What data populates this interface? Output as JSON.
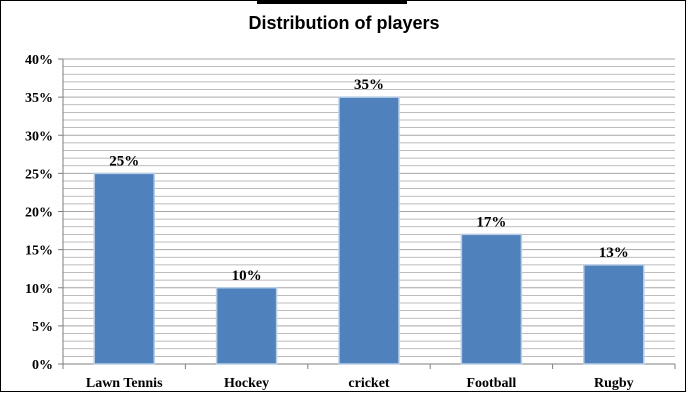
{
  "chart_data": {
    "type": "bar",
    "title": "Distribution of players",
    "xlabel": "",
    "ylabel": "",
    "categories": [
      "Lawn Tennis",
      "Hockey",
      "cricket",
      "Football",
      "Rugby"
    ],
    "values": [
      25,
      10,
      35,
      17,
      13
    ],
    "data_labels": [
      "25%",
      "10%",
      "35%",
      "17%",
      "13%"
    ],
    "ylim": [
      0,
      40
    ],
    "y_ticks": [
      0,
      5,
      10,
      15,
      20,
      25,
      30,
      35,
      40
    ],
    "y_tick_labels": [
      "0%",
      "5%",
      "10%",
      "15%",
      "20%",
      "25%",
      "30%",
      "35%",
      "40%"
    ],
    "y_minor_step": 1,
    "grid": true,
    "legend": "none",
    "colors": {
      "bar": "#4f81bd",
      "bar_edge": "#b9cde5",
      "grid": "#a6a6a6",
      "axis": "#7f7f7f"
    }
  }
}
